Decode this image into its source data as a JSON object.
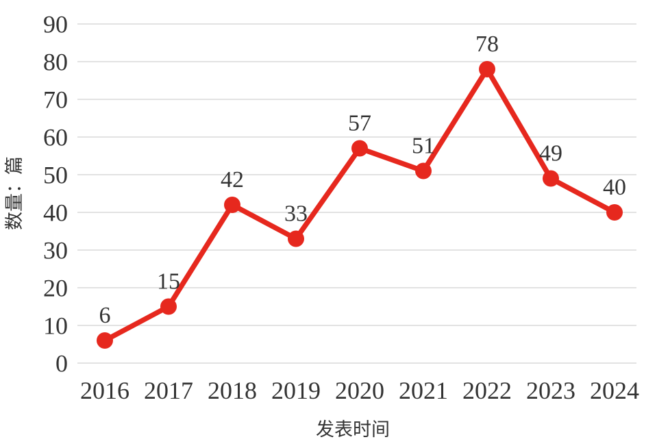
{
  "chart_data": {
    "type": "line",
    "title": "",
    "categories": [
      "2016",
      "2017",
      "2018",
      "2019",
      "2020",
      "2021",
      "2022",
      "2023",
      "2024"
    ],
    "values": [
      6,
      15,
      42,
      33,
      57,
      51,
      78,
      49,
      40
    ],
    "data_labels": [
      "6",
      "15",
      "42",
      "33",
      "57",
      "51",
      "78",
      "49",
      "40"
    ],
    "xlabel": "发表时间",
    "ylabel": "数量：篇",
    "ylim": [
      0,
      90
    ],
    "ytick_step": 10,
    "yticks": [
      "0",
      "10",
      "20",
      "30",
      "40",
      "50",
      "60",
      "70",
      "80",
      "90"
    ],
    "grid": true,
    "legend_position": "none",
    "series_name": "数量",
    "series_color": "#e6281e",
    "marker": "circle",
    "text_color": "#333333",
    "grid_color": "#d9d9d9",
    "background_color": "#ffffff"
  }
}
